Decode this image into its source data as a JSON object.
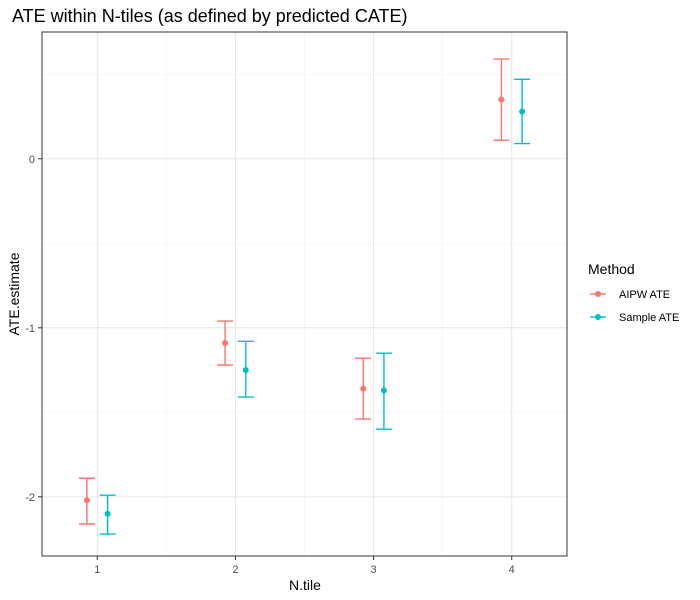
{
  "chart_data": {
    "type": "scatter",
    "title": "ATE within N-tiles (as defined by predicted CATE)",
    "xlabel": "N.tile",
    "ylabel": "ATE.estimate",
    "categories": [
      "1",
      "2",
      "3",
      "4"
    ],
    "y_ticks": [
      -2,
      -1,
      0
    ],
    "y_tick_labels": [
      "-2",
      "-1",
      "0"
    ],
    "ylim": [
      -2.35,
      0.75
    ],
    "grid": true,
    "legend": {
      "title": "Method",
      "position": "right"
    },
    "series": [
      {
        "name": "AIPW ATE",
        "color": "#F8766D",
        "values": [
          -2.02,
          -1.09,
          -1.36,
          0.35
        ],
        "lower": [
          -2.16,
          -1.22,
          -1.54,
          0.11
        ],
        "upper": [
          -1.89,
          -0.96,
          -1.18,
          0.59
        ]
      },
      {
        "name": "Sample ATE",
        "color": "#00BFC4",
        "values": [
          -2.1,
          -1.25,
          -1.37,
          0.28
        ],
        "lower": [
          -2.22,
          -1.41,
          -1.6,
          0.09
        ],
        "upper": [
          -1.99,
          -1.08,
          -1.15,
          0.47
        ]
      }
    ]
  }
}
